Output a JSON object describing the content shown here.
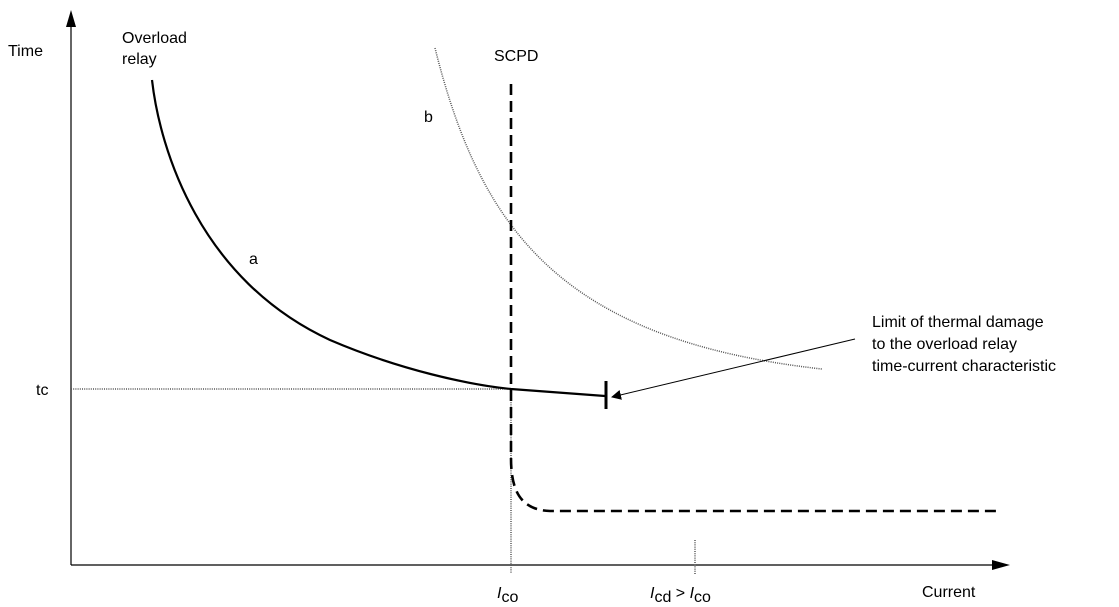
{
  "axes": {
    "y_label": "Time",
    "x_label": "Current"
  },
  "curves": {
    "overload_relay": {
      "label_line1": "Overload",
      "label_line2": "relay",
      "curve_letter": "a"
    },
    "b_curve": {
      "curve_letter": "b"
    },
    "scpd": {
      "label": "SCPD"
    }
  },
  "ticks": {
    "tc_label": "tc",
    "ico": {
      "main": "I",
      "sub": "co"
    },
    "icd": {
      "main": "I",
      "sub": "cd",
      "mid": " > ",
      "main2": "I",
      "sub2": "co"
    }
  },
  "annotation": {
    "line1": "Limit of thermal damage",
    "line2": "to the overload relay",
    "line3": "time-current characteristic"
  },
  "colors": {
    "stroke": "#000000",
    "dotted": "#555555",
    "background": "#ffffff"
  }
}
